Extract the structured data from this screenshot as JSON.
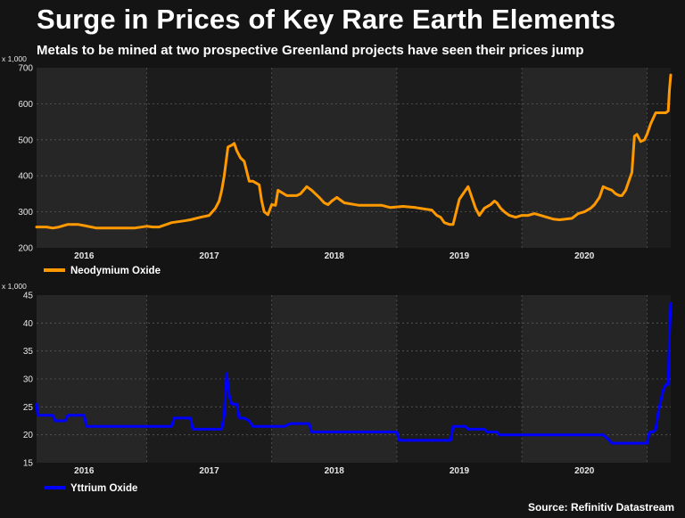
{
  "title": "Surge in Prices of Key Rare Earth Elements",
  "subtitle": "Metals to be mined at two prospective Greenland projects have seen their prices jump",
  "source": "Source: Refinitiv Datastream",
  "colors": {
    "background": "#141414",
    "plot_background": "#262626",
    "neodymium": "#FF9900",
    "yttrium": "#0000FF"
  },
  "chart_data": [
    {
      "type": "line",
      "name": "Neodymium Oxide",
      "unit_label": "x 1,000",
      "legend": "Neodymium Oxide",
      "ylim": [
        200,
        700
      ],
      "yticks": [
        200,
        300,
        400,
        500,
        600,
        700
      ],
      "xlim": [
        2015.62,
        2020.69
      ],
      "year_labels": [
        "2016",
        "2017",
        "2018",
        "2019",
        "2020"
      ],
      "grid": true,
      "x": [
        2015.62,
        2015.7,
        2015.75,
        2015.8,
        2015.87,
        2015.95,
        2016.0,
        2016.1,
        2016.4,
        2016.5,
        2016.55,
        2016.6,
        2016.7,
        2016.8,
        2016.85,
        2016.93,
        2017.0,
        2017.05,
        2017.08,
        2017.1,
        2017.12,
        2017.15,
        2017.18,
        2017.2,
        2017.22,
        2017.25,
        2017.28,
        2017.32,
        2017.35,
        2017.4,
        2017.42,
        2017.44,
        2017.47,
        2017.5,
        2017.53,
        2017.55,
        2017.62,
        2017.7,
        2017.73,
        2017.78,
        2017.82,
        2017.88,
        2017.92,
        2017.95,
        2017.98,
        2018.02,
        2018.08,
        2018.2,
        2018.3,
        2018.38,
        2018.45,
        2018.55,
        2018.65,
        2018.72,
        2018.78,
        2018.82,
        2018.85,
        2018.88,
        2018.92,
        2018.95,
        2019.0,
        2019.03,
        2019.07,
        2019.1,
        2019.13,
        2019.16,
        2019.2,
        2019.25,
        2019.28,
        2019.3,
        2019.33,
        2019.36,
        2019.4,
        2019.45,
        2019.5,
        2019.55,
        2019.6,
        2019.65,
        2019.7,
        2019.75,
        2019.8,
        2019.85,
        2019.9,
        2019.95,
        2020.0,
        2020.05,
        2020.08,
        2020.12,
        2020.15,
        2020.18,
        2020.22,
        2020.25,
        2020.28,
        2020.3,
        2020.33,
        2020.35,
        2020.38,
        2020.4,
        2020.42,
        2020.45,
        2020.48,
        2020.5,
        2020.53,
        2020.57,
        2020.6,
        2020.62,
        2020.65,
        2020.67,
        2020.68,
        2020.69
      ],
      "values": [
        258,
        258,
        255,
        258,
        265,
        265,
        262,
        255,
        255,
        260,
        258,
        258,
        270,
        275,
        278,
        285,
        290,
        310,
        330,
        360,
        400,
        480,
        485,
        490,
        470,
        450,
        440,
        385,
        385,
        375,
        330,
        300,
        292,
        320,
        318,
        360,
        345,
        345,
        350,
        370,
        360,
        340,
        325,
        320,
        330,
        340,
        325,
        318,
        318,
        318,
        312,
        315,
        312,
        308,
        305,
        290,
        285,
        270,
        265,
        265,
        335,
        350,
        370,
        340,
        310,
        290,
        310,
        320,
        330,
        325,
        310,
        300,
        290,
        285,
        290,
        290,
        295,
        290,
        285,
        280,
        278,
        280,
        282,
        295,
        300,
        310,
        320,
        340,
        370,
        365,
        360,
        350,
        345,
        345,
        360,
        380,
        410,
        510,
        515,
        495,
        500,
        515,
        545,
        575,
        575,
        575,
        575,
        580,
        640,
        680
      ]
    },
    {
      "type": "line",
      "name": "Yttrium Oxide",
      "unit_label": "x 1,000",
      "legend": "Yttrium Oxide",
      "ylim": [
        15,
        45
      ],
      "yticks": [
        15,
        20,
        25,
        30,
        35,
        40,
        45
      ],
      "xlim": [
        2015.62,
        2020.69
      ],
      "year_labels": [
        "2016",
        "2017",
        "2018",
        "2019",
        "2020"
      ],
      "grid": true,
      "x": [
        2015.62,
        2015.63,
        2015.65,
        2015.75,
        2015.77,
        2015.85,
        2015.87,
        2016.0,
        2016.02,
        2016.4,
        2016.7,
        2016.72,
        2016.85,
        2016.87,
        2017.1,
        2017.12,
        2017.14,
        2017.16,
        2017.18,
        2017.22,
        2017.24,
        2017.28,
        2017.32,
        2017.35,
        2017.6,
        2017.65,
        2017.8,
        2017.82,
        2018.0,
        2018.5,
        2018.52,
        2018.93,
        2018.95,
        2019.05,
        2019.07,
        2019.2,
        2019.22,
        2019.3,
        2019.32,
        2019.4,
        2019.42,
        2020.15,
        2020.2,
        2020.22,
        2020.5,
        2020.52,
        2020.55,
        2020.57,
        2020.59,
        2020.61,
        2020.63,
        2020.65,
        2020.66,
        2020.67,
        2020.68,
        2020.69
      ],
      "values": [
        25.5,
        23.5,
        23.5,
        23.5,
        22.5,
        22.5,
        23.5,
        23.5,
        21.5,
        21.5,
        21.5,
        23,
        23,
        21,
        21,
        23.5,
        31,
        27,
        25.5,
        25.5,
        23,
        23,
        22.5,
        21.5,
        21.5,
        22,
        22,
        20.5,
        20.5,
        20.5,
        19,
        19,
        21.5,
        21.5,
        21,
        21,
        20.5,
        20.5,
        20,
        20,
        20,
        20,
        19,
        18.5,
        18.5,
        20.5,
        20.5,
        21,
        24,
        26,
        28,
        29,
        29,
        29,
        38,
        43.5
      ]
    }
  ]
}
